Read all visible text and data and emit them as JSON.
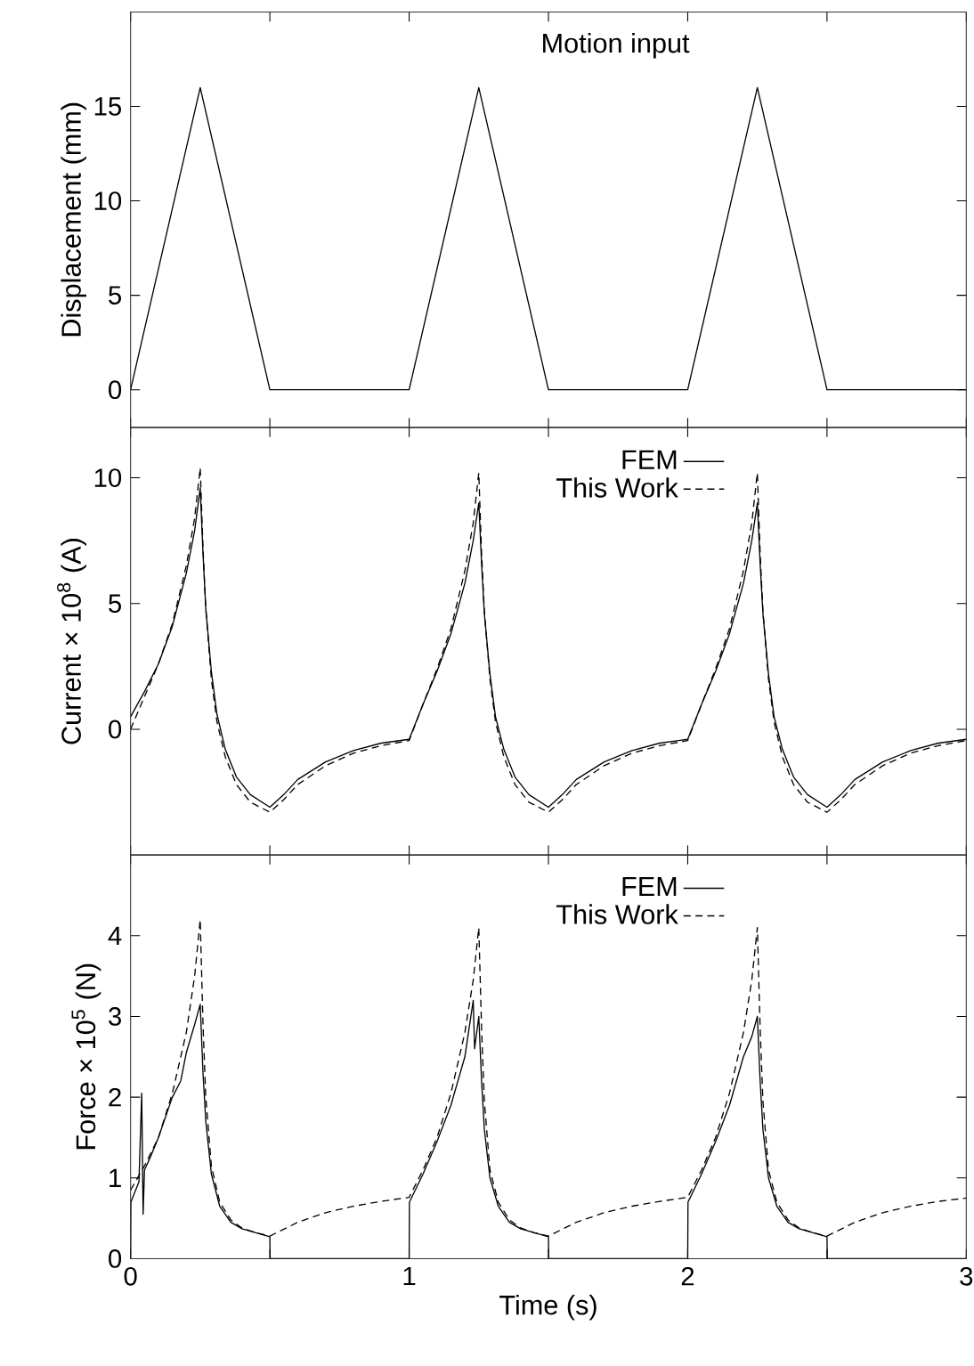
{
  "chart_data": [
    {
      "type": "line",
      "ylabel": "Displacement (mm)",
      "annotations": [
        "Motion input"
      ],
      "xlim": [
        0,
        3
      ],
      "ylim": [
        -2,
        20
      ],
      "xticks": [
        0,
        {
          "value": 0.5,
          "label": null
        },
        1,
        {
          "value": 1.5,
          "label": null
        },
        2,
        {
          "value": 2.5,
          "label": null
        },
        3
      ],
      "yticks": [
        0,
        5,
        10,
        15
      ],
      "tick_labels": "y",
      "grid": false,
      "legend": false,
      "series": [
        {
          "color": "#000000",
          "line_style": "solid",
          "x": [
            0,
            0.25,
            0.5,
            1.0,
            1.25,
            1.5,
            2.0,
            2.25,
            2.5,
            3.0
          ],
          "values": [
            0,
            16,
            0,
            0,
            16,
            0,
            0,
            16,
            0,
            0
          ]
        }
      ]
    },
    {
      "type": "line",
      "ylabel": "Current × 10$^{8}$  (A)",
      "xlim": [
        0,
        3
      ],
      "ylim": [
        -5,
        12
      ],
      "xticks": [
        0,
        {
          "value": 0.5,
          "label": null
        },
        1,
        {
          "value": 1.5,
          "label": null
        },
        2,
        {
          "value": 2.5,
          "label": null
        },
        3
      ],
      "yticks": [
        0,
        5,
        10
      ],
      "tick_labels": "y",
      "grid": false,
      "legend": "top",
      "series": [
        {
          "name": "FEM",
          "color": "#000000",
          "line_style": "solid",
          "x": [
            0,
            0.05,
            0.1,
            0.15,
            0.2,
            0.23,
            0.25,
            0.26,
            0.27,
            0.29,
            0.31,
            0.34,
            0.38,
            0.43,
            0.5,
            0.55,
            0.6,
            0.7,
            0.8,
            0.9,
            1.0,
            1.05,
            1.1,
            1.15,
            1.2,
            1.23,
            1.25,
            1.26,
            1.27,
            1.29,
            1.31,
            1.34,
            1.38,
            1.43,
            1.5,
            1.55,
            1.6,
            1.7,
            1.8,
            1.9,
            2.0,
            2.05,
            2.1,
            2.15,
            2.2,
            2.23,
            2.25,
            2.26,
            2.27,
            2.29,
            2.31,
            2.34,
            2.38,
            2.43,
            2.5,
            2.55,
            2.6,
            2.7,
            2.8,
            2.9,
            3.0
          ],
          "values": [
            0.5,
            1.5,
            2.6,
            4.1,
            6.2,
            7.9,
            9.6,
            7.0,
            4.8,
            2.3,
            0.6,
            -0.8,
            -1.9,
            -2.6,
            -3.1,
            -2.6,
            -2.0,
            -1.3,
            -0.85,
            -0.55,
            -0.4,
            1.0,
            2.3,
            3.8,
            5.8,
            7.5,
            9.0,
            6.6,
            4.6,
            2.2,
            0.5,
            -0.8,
            -1.9,
            -2.6,
            -3.1,
            -2.6,
            -2.0,
            -1.3,
            -0.85,
            -0.55,
            -0.4,
            1.0,
            2.3,
            3.8,
            5.8,
            7.5,
            9.0,
            6.6,
            4.6,
            2.2,
            0.5,
            -0.8,
            -1.9,
            -2.6,
            -3.1,
            -2.6,
            -2.0,
            -1.3,
            -0.85,
            -0.55,
            -0.4
          ]
        },
        {
          "name": "This Work",
          "color": "#000000",
          "line_style": "dashed",
          "x": [
            0,
            0.05,
            0.1,
            0.15,
            0.2,
            0.23,
            0.25,
            0.26,
            0.27,
            0.29,
            0.31,
            0.34,
            0.38,
            0.43,
            0.5,
            0.55,
            0.6,
            0.7,
            0.8,
            0.9,
            1.0,
            1.05,
            1.1,
            1.15,
            1.2,
            1.23,
            1.25,
            1.26,
            1.27,
            1.29,
            1.31,
            1.34,
            1.38,
            1.43,
            1.5,
            1.55,
            1.6,
            1.7,
            1.8,
            1.9,
            2.0,
            2.05,
            2.1,
            2.15,
            2.2,
            2.23,
            2.25,
            2.26,
            2.27,
            2.29,
            2.31,
            2.34,
            2.38,
            2.43,
            2.5,
            2.55,
            2.6,
            2.7,
            2.8,
            2.9,
            3.0
          ],
          "values": [
            0.0,
            1.3,
            2.6,
            4.2,
            6.5,
            8.4,
            10.4,
            7.2,
            4.8,
            2.0,
            0.3,
            -1.1,
            -2.2,
            -2.9,
            -3.3,
            -2.8,
            -2.2,
            -1.45,
            -0.95,
            -0.65,
            -0.45,
            1.0,
            2.4,
            4.0,
            6.3,
            8.2,
            10.2,
            7.0,
            4.7,
            2.0,
            0.3,
            -1.1,
            -2.2,
            -2.9,
            -3.3,
            -2.8,
            -2.2,
            -1.45,
            -0.95,
            -0.65,
            -0.45,
            1.0,
            2.4,
            4.0,
            6.3,
            8.2,
            10.2,
            7.0,
            4.7,
            2.0,
            0.3,
            -1.1,
            -2.2,
            -2.9,
            -3.3,
            -2.8,
            -2.2,
            -1.45,
            -0.95,
            -0.65,
            -0.45
          ]
        }
      ]
    },
    {
      "type": "line",
      "xlabel": "Time (s)",
      "ylabel": "Force × 10$^{5}$  (N)",
      "xlim": [
        0,
        3
      ],
      "ylim": [
        0,
        5
      ],
      "xticks": [
        0,
        {
          "value": 0.5,
          "label": null
        },
        1,
        {
          "value": 1.5,
          "label": null
        },
        2,
        {
          "value": 2.5,
          "label": null
        },
        3
      ],
      "yticks": [
        0,
        1,
        2,
        3,
        4
      ],
      "grid": false,
      "legend": "top",
      "series": [
        {
          "name": "FEM",
          "color": "#000000",
          "line_style": "solid",
          "x": [
            0,
            0.001,
            0.03,
            0.04,
            0.045,
            0.05,
            0.07,
            0.1,
            0.15,
            0.18,
            0.2,
            0.23,
            0.25,
            0.26,
            0.27,
            0.29,
            0.32,
            0.36,
            0.4,
            0.45,
            0.5,
            0.501,
            1.0,
            1.001,
            1.05,
            1.1,
            1.15,
            1.2,
            1.23,
            1.235,
            1.25,
            1.26,
            1.27,
            1.29,
            1.32,
            1.36,
            1.4,
            1.45,
            1.5,
            1.501,
            2.0,
            2.001,
            2.05,
            2.1,
            2.15,
            2.2,
            2.23,
            2.25,
            2.26,
            2.27,
            2.29,
            2.32,
            2.36,
            2.4,
            2.45,
            2.5,
            2.501,
            3.0
          ],
          "values": [
            0,
            0.7,
            0.95,
            2.05,
            0.55,
            1.1,
            1.25,
            1.5,
            2.0,
            2.2,
            2.55,
            2.9,
            3.15,
            2.3,
            1.7,
            1.05,
            0.65,
            0.45,
            0.37,
            0.32,
            0.27,
            0,
            0,
            0.7,
            1.05,
            1.45,
            1.9,
            2.5,
            3.2,
            2.6,
            3.0,
            2.2,
            1.6,
            1.0,
            0.65,
            0.45,
            0.37,
            0.32,
            0.27,
            0,
            0,
            0.7,
            1.05,
            1.45,
            1.9,
            2.5,
            2.75,
            3.0,
            2.2,
            1.6,
            1.0,
            0.65,
            0.45,
            0.37,
            0.32,
            0.27,
            0,
            0
          ]
        },
        {
          "name": "This Work",
          "color": "#000000",
          "line_style": "dashed",
          "x": [
            0,
            0.05,
            0.1,
            0.15,
            0.2,
            0.23,
            0.25,
            0.26,
            0.27,
            0.29,
            0.32,
            0.36,
            0.4,
            0.45,
            0.5,
            0.6,
            0.7,
            0.8,
            0.9,
            1.0,
            1.05,
            1.1,
            1.15,
            1.2,
            1.23,
            1.25,
            1.26,
            1.27,
            1.29,
            1.32,
            1.36,
            1.4,
            1.45,
            1.5,
            1.6,
            1.7,
            1.8,
            1.9,
            2.0,
            2.05,
            2.1,
            2.15,
            2.2,
            2.23,
            2.25,
            2.26,
            2.27,
            2.29,
            2.32,
            2.36,
            2.4,
            2.45,
            2.5,
            2.6,
            2.7,
            2.8,
            2.9,
            3.0
          ],
          "values": [
            0.85,
            1.15,
            1.5,
            2.05,
            2.8,
            3.5,
            4.2,
            2.9,
            2.0,
            1.15,
            0.7,
            0.48,
            0.38,
            0.32,
            0.28,
            0.45,
            0.57,
            0.65,
            0.71,
            0.76,
            1.1,
            1.5,
            2.05,
            2.8,
            3.45,
            4.1,
            2.85,
            1.95,
            1.1,
            0.7,
            0.48,
            0.38,
            0.32,
            0.28,
            0.45,
            0.57,
            0.65,
            0.71,
            0.76,
            1.1,
            1.5,
            2.05,
            2.8,
            3.45,
            4.1,
            2.85,
            1.95,
            1.1,
            0.7,
            0.48,
            0.38,
            0.32,
            0.28,
            0.45,
            0.57,
            0.65,
            0.71,
            0.75
          ]
        }
      ]
    }
  ]
}
